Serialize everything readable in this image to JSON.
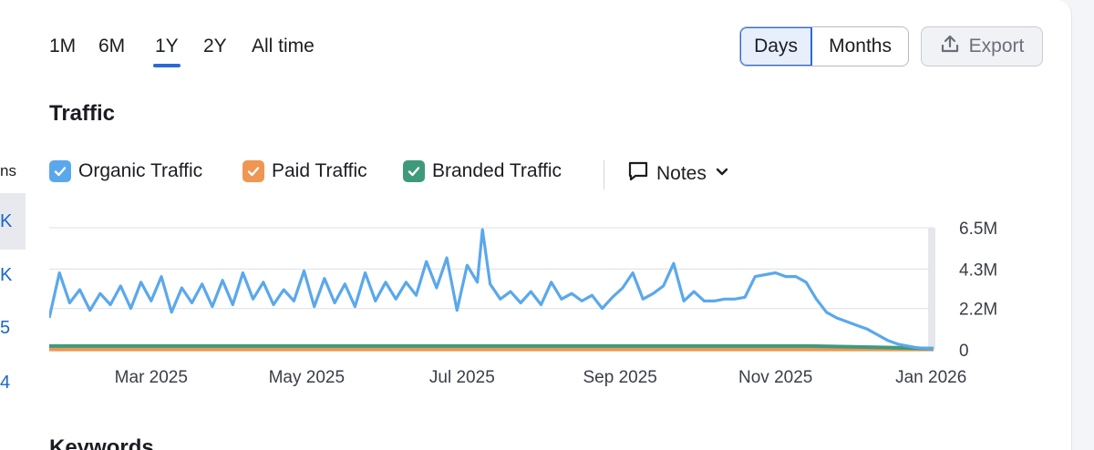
{
  "left_column": {
    "header": "ns",
    "values": [
      "K",
      "K",
      "5",
      "4"
    ]
  },
  "period_tabs": [
    {
      "label": "1M",
      "active": false
    },
    {
      "label": "6M",
      "active": false
    },
    {
      "label": "1Y",
      "active": true
    },
    {
      "label": "2Y",
      "active": false
    },
    {
      "label": "All time",
      "active": false
    }
  ],
  "granularity": {
    "days": "Days",
    "months": "Months",
    "selected": "Days"
  },
  "export": {
    "label": "Export",
    "icon": "upload-icon"
  },
  "section_title": "Traffic",
  "legend": [
    {
      "label": "Organic Traffic",
      "color": "#5aa8ec",
      "checked": true
    },
    {
      "label": "Paid Traffic",
      "color": "#ef9652",
      "checked": true
    },
    {
      "label": "Branded Traffic",
      "color": "#3f9a7c",
      "checked": true
    }
  ],
  "notes": {
    "label": "Notes",
    "icon": "comment-icon",
    "chevron": "chevron-down-icon"
  },
  "chart_data": {
    "type": "line",
    "x_start": "2025-01-20",
    "x_end": "2026-01-02",
    "x_ticks": [
      {
        "date": "2025-03-01",
        "label": "Mar 2025"
      },
      {
        "date": "2025-05-01",
        "label": "May 2025"
      },
      {
        "date": "2025-07-01",
        "label": "Jul 2025"
      },
      {
        "date": "2025-09-01",
        "label": "Sep 2025"
      },
      {
        "date": "2025-11-01",
        "label": "Nov 2025"
      },
      {
        "date": "2026-01-01",
        "label": "Jan 2026"
      }
    ],
    "y_ticks": [
      {
        "value": 0,
        "label": "0"
      },
      {
        "value": 2200000,
        "label": "2.2M"
      },
      {
        "value": 4300000,
        "label": "4.3M"
      },
      {
        "value": 6500000,
        "label": "6.5M"
      }
    ],
    "ylim": [
      0,
      6500000
    ],
    "grid": true,
    "series": [
      {
        "name": "Organic Traffic",
        "color": "#5aa8ec",
        "points": [
          [
            "2025-01-20",
            1700000
          ],
          [
            "2025-01-24",
            4100000
          ],
          [
            "2025-01-28",
            2500000
          ],
          [
            "2025-02-01",
            3200000
          ],
          [
            "2025-02-05",
            2100000
          ],
          [
            "2025-02-09",
            3000000
          ],
          [
            "2025-02-13",
            2400000
          ],
          [
            "2025-02-17",
            3400000
          ],
          [
            "2025-02-21",
            2200000
          ],
          [
            "2025-02-25",
            3600000
          ],
          [
            "2025-03-01",
            2600000
          ],
          [
            "2025-03-05",
            3900000
          ],
          [
            "2025-03-09",
            2000000
          ],
          [
            "2025-03-13",
            3300000
          ],
          [
            "2025-03-17",
            2500000
          ],
          [
            "2025-03-21",
            3500000
          ],
          [
            "2025-03-25",
            2300000
          ],
          [
            "2025-03-29",
            3700000
          ],
          [
            "2025-04-02",
            2400000
          ],
          [
            "2025-04-06",
            4100000
          ],
          [
            "2025-04-10",
            2700000
          ],
          [
            "2025-04-14",
            3600000
          ],
          [
            "2025-04-18",
            2400000
          ],
          [
            "2025-04-22",
            3200000
          ],
          [
            "2025-04-26",
            2600000
          ],
          [
            "2025-04-30",
            4200000
          ],
          [
            "2025-05-04",
            2300000
          ],
          [
            "2025-05-08",
            3800000
          ],
          [
            "2025-05-12",
            2500000
          ],
          [
            "2025-05-16",
            3500000
          ],
          [
            "2025-05-20",
            2300000
          ],
          [
            "2025-05-24",
            4100000
          ],
          [
            "2025-05-28",
            2600000
          ],
          [
            "2025-06-01",
            3600000
          ],
          [
            "2025-06-05",
            2700000
          ],
          [
            "2025-06-09",
            3600000
          ],
          [
            "2025-06-13",
            2900000
          ],
          [
            "2025-06-17",
            4700000
          ],
          [
            "2025-06-21",
            3300000
          ],
          [
            "2025-06-25",
            4900000
          ],
          [
            "2025-06-29",
            2100000
          ],
          [
            "2025-07-03",
            4500000
          ],
          [
            "2025-07-07",
            3600000
          ],
          [
            "2025-07-09",
            6400000
          ],
          [
            "2025-07-12",
            3500000
          ],
          [
            "2025-07-16",
            2700000
          ],
          [
            "2025-07-20",
            3100000
          ],
          [
            "2025-07-24",
            2500000
          ],
          [
            "2025-07-28",
            3100000
          ],
          [
            "2025-08-01",
            2400000
          ],
          [
            "2025-08-05",
            3600000
          ],
          [
            "2025-08-09",
            2700000
          ],
          [
            "2025-08-13",
            3000000
          ],
          [
            "2025-08-17",
            2600000
          ],
          [
            "2025-08-21",
            2900000
          ],
          [
            "2025-08-25",
            2200000
          ],
          [
            "2025-08-29",
            2800000
          ],
          [
            "2025-09-02",
            3300000
          ],
          [
            "2025-09-06",
            4100000
          ],
          [
            "2025-09-10",
            2700000
          ],
          [
            "2025-09-14",
            3000000
          ],
          [
            "2025-09-18",
            3400000
          ],
          [
            "2025-09-22",
            4600000
          ],
          [
            "2025-09-26",
            2600000
          ],
          [
            "2025-09-30",
            3100000
          ],
          [
            "2025-10-04",
            2600000
          ],
          [
            "2025-10-08",
            2600000
          ],
          [
            "2025-10-12",
            2700000
          ],
          [
            "2025-10-16",
            2700000
          ],
          [
            "2025-10-20",
            2800000
          ],
          [
            "2025-10-24",
            3900000
          ],
          [
            "2025-10-28",
            4000000
          ],
          [
            "2025-11-01",
            4100000
          ],
          [
            "2025-11-05",
            3900000
          ],
          [
            "2025-11-09",
            3900000
          ],
          [
            "2025-11-13",
            3600000
          ],
          [
            "2025-11-17",
            2700000
          ],
          [
            "2025-11-21",
            2000000
          ],
          [
            "2025-11-25",
            1700000
          ],
          [
            "2025-11-29",
            1500000
          ],
          [
            "2025-12-03",
            1300000
          ],
          [
            "2025-12-07",
            1100000
          ],
          [
            "2025-12-11",
            800000
          ],
          [
            "2025-12-15",
            500000
          ],
          [
            "2025-12-19",
            300000
          ],
          [
            "2025-12-23",
            200000
          ],
          [
            "2025-12-27",
            100000
          ],
          [
            "2026-01-02",
            50000
          ]
        ]
      },
      {
        "name": "Paid Traffic",
        "color": "#ef9652",
        "points": [
          [
            "2025-01-20",
            20000
          ],
          [
            "2026-01-02",
            20000
          ]
        ]
      },
      {
        "name": "Branded Traffic",
        "color": "#3f9a7c",
        "points": [
          [
            "2025-01-20",
            200000
          ],
          [
            "2025-11-15",
            200000
          ],
          [
            "2025-12-15",
            120000
          ],
          [
            "2026-01-02",
            60000
          ]
        ]
      }
    ]
  },
  "next_section_title": "Keywords"
}
